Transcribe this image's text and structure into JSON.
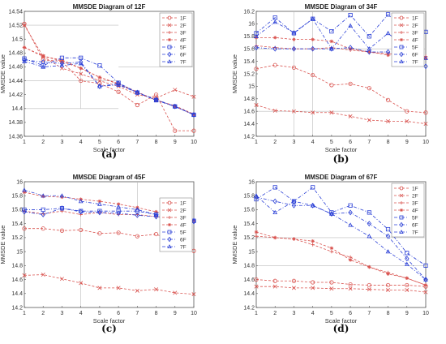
{
  "series_styles": [
    {
      "name": "1F",
      "color": "#d9534f",
      "marker": "circle",
      "dash": "3,2"
    },
    {
      "name": "2F",
      "color": "#d9534f",
      "marker": "x",
      "dash": "3,2"
    },
    {
      "name": "3F",
      "color": "#d9534f",
      "marker": "plus",
      "dash": "3,2"
    },
    {
      "name": "4F",
      "color": "#d9534f",
      "marker": "star",
      "dash": "3,2"
    },
    {
      "name": "5F",
      "color": "#2a3fd6",
      "marker": "square",
      "dash": "4,2,1,2"
    },
    {
      "name": "6F",
      "color": "#2a3fd6",
      "marker": "diamond",
      "dash": "4,2,1,2"
    },
    {
      "name": "7F",
      "color": "#2a3fd6",
      "marker": "triangle",
      "dash": "4,2,1,2"
    }
  ],
  "chart_data": [
    {
      "type": "line",
      "title": "MMSDE Diagram of 12F",
      "label": "(a)",
      "xlabel": "Scale factor",
      "ylabel": "MMSDE value",
      "xlim": [
        1,
        10
      ],
      "ylim": [
        14.36,
        14.54
      ],
      "xticks": [
        1,
        2,
        3,
        4,
        5,
        6,
        7,
        8,
        9,
        10
      ],
      "yticks": [
        14.36,
        14.38,
        14.4,
        14.42,
        14.44,
        14.46,
        14.48,
        14.5,
        14.52,
        14.54
      ],
      "ytick_labels": [
        "14.36",
        "14.38",
        "14.4",
        "14.42",
        "14.44",
        "14.46",
        "14.48",
        "14.5",
        "14.52",
        "14.54"
      ],
      "grid": "partial",
      "legend": "top-right",
      "x": [
        1,
        2,
        3,
        4,
        5,
        6,
        7,
        8,
        9,
        10
      ],
      "series": [
        {
          "name": "1F",
          "values": [
            14.522,
            14.47,
            14.468,
            14.44,
            14.436,
            14.424,
            14.405,
            14.42,
            14.368,
            14.368
          ]
        },
        {
          "name": "2F",
          "values": [
            14.52,
            14.475,
            14.458,
            14.45,
            14.44,
            14.432,
            14.42,
            14.415,
            14.427,
            14.417
          ]
        },
        {
          "name": "3F",
          "values": [
            14.488,
            14.475,
            14.47,
            14.458,
            14.445,
            14.436,
            14.424,
            14.412,
            14.404,
            14.392
          ]
        },
        {
          "name": "4F",
          "values": [
            14.488,
            14.476,
            14.468,
            14.458,
            14.445,
            14.435,
            14.423,
            14.412,
            14.403,
            14.391
          ]
        },
        {
          "name": "5F",
          "values": [
            14.472,
            14.462,
            14.473,
            14.473,
            14.462,
            14.437,
            14.423,
            14.412,
            14.403,
            14.391
          ]
        },
        {
          "name": "6F",
          "values": [
            14.47,
            14.467,
            14.465,
            14.467,
            14.432,
            14.436,
            14.423,
            14.413,
            14.403,
            14.391
          ]
        },
        {
          "name": "7F",
          "values": [
            14.468,
            14.46,
            14.462,
            14.465,
            14.432,
            14.434,
            14.423,
            14.412,
            14.403,
            14.391
          ]
        }
      ]
    },
    {
      "type": "line",
      "title": "MMSDE Diagram of 34F",
      "label": "(b)",
      "xlabel": "Scale factor",
      "ylabel": "MMSDE value",
      "xlim": [
        1,
        10
      ],
      "ylim": [
        14.2,
        16.2
      ],
      "xticks": [
        1,
        2,
        3,
        4,
        5,
        6,
        7,
        8,
        9,
        10
      ],
      "yticks": [
        14.2,
        14.4,
        14.6,
        14.8,
        15,
        15.2,
        15.4,
        15.6,
        15.8,
        16,
        16.2
      ],
      "ytick_labels": [
        "14.2",
        "14.4",
        "14.6",
        "14.8",
        "15",
        "15.2",
        "15.4",
        "15.6",
        "15.8",
        "16",
        "16.2"
      ],
      "grid": "partial",
      "legend": "top-right",
      "x": [
        1,
        2,
        3,
        4,
        5,
        6,
        7,
        8,
        9,
        10
      ],
      "series": [
        {
          "name": "1F",
          "values": [
            15.28,
            15.34,
            15.3,
            15.18,
            15.02,
            15.04,
            14.97,
            14.78,
            14.6,
            14.58
          ]
        },
        {
          "name": "2F",
          "values": [
            14.7,
            14.61,
            14.6,
            14.58,
            14.58,
            14.52,
            14.46,
            14.44,
            14.44,
            14.4
          ]
        },
        {
          "name": "3F",
          "values": [
            15.65,
            15.62,
            15.6,
            15.6,
            15.62,
            15.58,
            15.55,
            15.52,
            15.5,
            15.48
          ]
        },
        {
          "name": "4F",
          "values": [
            15.78,
            15.78,
            15.75,
            15.75,
            15.72,
            15.6,
            15.55,
            15.5,
            15.48,
            15.45
          ]
        },
        {
          "name": "5F",
          "values": [
            15.85,
            16.1,
            15.85,
            16.08,
            15.88,
            16.14,
            15.8,
            16.15,
            15.85,
            15.87
          ]
        },
        {
          "name": "6F",
          "values": [
            15.62,
            15.6,
            15.6,
            15.6,
            15.6,
            15.62,
            15.55,
            15.55,
            15.4,
            15.32
          ]
        },
        {
          "name": "7F",
          "values": [
            15.8,
            16.03,
            15.86,
            16.08,
            15.6,
            15.97,
            15.6,
            15.85,
            15.6,
            15.45
          ]
        }
      ]
    },
    {
      "type": "line",
      "title": "MMSDE Diagram of 45F",
      "label": "(c)",
      "xlabel": "Scale factor",
      "ylabel": "MMSDE value",
      "xlim": [
        1,
        10
      ],
      "ylim": [
        14.2,
        16
      ],
      "xticks": [
        1,
        2,
        3,
        4,
        5,
        6,
        7,
        8,
        9,
        10
      ],
      "yticks": [
        14.2,
        14.4,
        14.6,
        14.8,
        15,
        15.2,
        15.4,
        15.6,
        15.8,
        16
      ],
      "ytick_labels": [
        "14.2",
        "14.4",
        "14.6",
        "14.8",
        "15",
        "15.2",
        "15.4",
        "15.6",
        "15.8",
        "16"
      ],
      "grid": "partial",
      "legend": "right",
      "x": [
        1,
        2,
        3,
        4,
        5,
        6,
        7,
        8,
        9,
        10
      ],
      "series": [
        {
          "name": "1F",
          "values": [
            15.33,
            15.33,
            15.3,
            15.31,
            15.26,
            15.27,
            15.22,
            15.25,
            15.13,
            15.01
          ]
        },
        {
          "name": "2F",
          "values": [
            14.66,
            14.67,
            14.61,
            14.55,
            14.48,
            14.48,
            14.44,
            14.46,
            14.41,
            14.39
          ]
        },
        {
          "name": "3F",
          "values": [
            15.58,
            15.54,
            15.58,
            15.53,
            15.56,
            15.53,
            15.53,
            15.5,
            15.48,
            15.45
          ]
        },
        {
          "name": "4F",
          "values": [
            15.85,
            15.79,
            15.78,
            15.75,
            15.72,
            15.68,
            15.63,
            15.57,
            15.5,
            15.44
          ]
        },
        {
          "name": "5F",
          "values": [
            15.6,
            15.6,
            15.62,
            15.58,
            15.58,
            15.58,
            15.58,
            15.53,
            15.5,
            15.44
          ]
        },
        {
          "name": "6F",
          "values": [
            15.57,
            15.53,
            15.62,
            15.57,
            15.56,
            15.55,
            15.52,
            15.5,
            15.48,
            15.43
          ]
        },
        {
          "name": "7F",
          "values": [
            15.88,
            15.8,
            15.8,
            15.72,
            15.68,
            15.64,
            15.6,
            15.53,
            15.5,
            15.45
          ]
        }
      ]
    },
    {
      "type": "line",
      "title": "MMSDE Diagram of 67F",
      "label": "(d)",
      "xlabel": "Scale factor",
      "ylabel": "MMSDE value",
      "xlim": [
        1,
        10
      ],
      "ylim": [
        14.2,
        16
      ],
      "xticks": [
        1,
        2,
        3,
        4,
        5,
        6,
        7,
        8,
        9,
        10
      ],
      "yticks": [
        14.2,
        14.4,
        14.6,
        14.8,
        15,
        15.2,
        15.4,
        15.6,
        15.8,
        16
      ],
      "ytick_labels": [
        "14.2",
        "14.4",
        "14.6",
        "14.8",
        "15",
        "15.2",
        "15.4",
        "15.6",
        "15.8",
        "16"
      ],
      "grid": "partial",
      "legend": "top-right",
      "x": [
        1,
        2,
        3,
        4,
        5,
        6,
        7,
        8,
        9,
        10
      ],
      "series": [
        {
          "name": "1F",
          "values": [
            14.6,
            14.58,
            14.58,
            14.56,
            14.56,
            14.53,
            14.52,
            14.52,
            14.52,
            14.5
          ]
        },
        {
          "name": "2F",
          "values": [
            14.5,
            14.5,
            14.48,
            14.48,
            14.47,
            14.47,
            14.46,
            14.45,
            14.45,
            14.42
          ]
        },
        {
          "name": "3F",
          "values": [
            15.22,
            15.2,
            15.18,
            15.1,
            15.0,
            14.92,
            14.78,
            14.7,
            14.62,
            14.52
          ]
        },
        {
          "name": "4F",
          "values": [
            15.28,
            15.2,
            15.18,
            15.15,
            15.05,
            14.88,
            14.78,
            14.68,
            14.62,
            14.52
          ]
        },
        {
          "name": "5F",
          "values": [
            15.75,
            15.92,
            15.72,
            15.92,
            15.56,
            15.66,
            15.56,
            15.32,
            14.98,
            14.8
          ]
        },
        {
          "name": "6F",
          "values": [
            15.78,
            15.72,
            15.66,
            15.66,
            15.54,
            15.56,
            15.4,
            15.22,
            14.9,
            14.6
          ]
        },
        {
          "name": "7F",
          "values": [
            15.8,
            15.56,
            15.72,
            15.66,
            15.54,
            15.38,
            15.22,
            15.0,
            14.82,
            14.6
          ]
        }
      ]
    }
  ]
}
